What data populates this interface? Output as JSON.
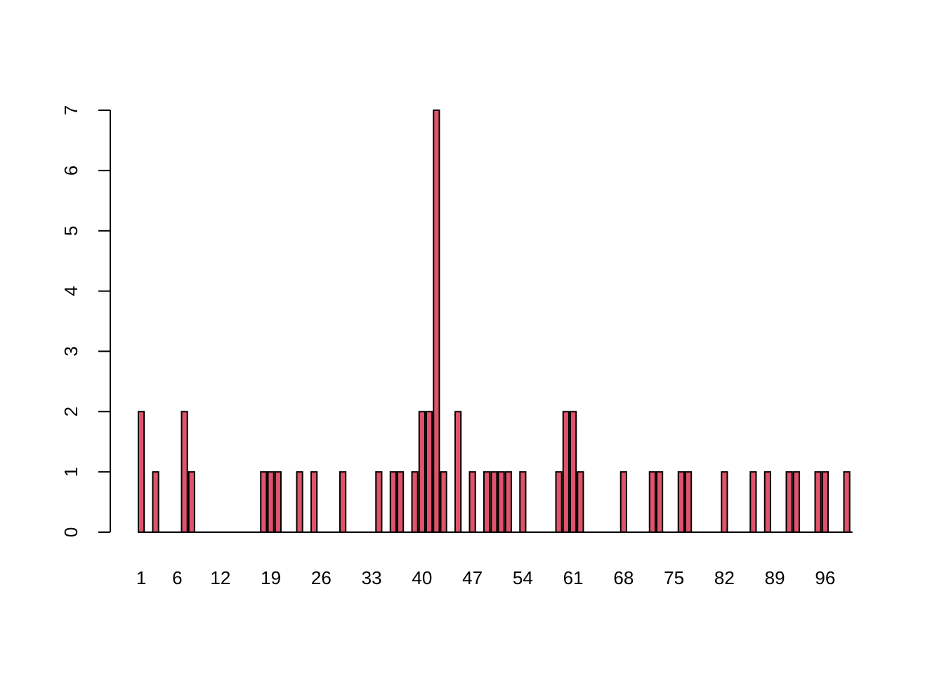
{
  "chart_data": {
    "type": "bar",
    "x": [
      1,
      3,
      7,
      8,
      18,
      19,
      20,
      23,
      25,
      29,
      34,
      36,
      37,
      39,
      40,
      41,
      42,
      43,
      45,
      47,
      49,
      50,
      51,
      52,
      54,
      59,
      60,
      61,
      62,
      68,
      72,
      73,
      76,
      77,
      82,
      86,
      88,
      91,
      92,
      95,
      96,
      99
    ],
    "values": [
      2,
      1,
      2,
      1,
      1,
      1,
      1,
      1,
      1,
      1,
      1,
      1,
      1,
      1,
      2,
      2,
      7,
      1,
      2,
      1,
      1,
      1,
      1,
      1,
      1,
      1,
      2,
      2,
      1,
      1,
      1,
      1,
      1,
      1,
      1,
      1,
      1,
      1,
      1,
      1,
      1,
      1
    ],
    "x_tick_labels": [
      "1",
      "6",
      "12",
      "19",
      "26",
      "33",
      "40",
      "47",
      "54",
      "61",
      "68",
      "75",
      "82",
      "89",
      "96"
    ],
    "y_ticks": [
      0,
      1,
      2,
      3,
      4,
      5,
      6,
      7
    ],
    "ylim": [
      0,
      7
    ],
    "title": "",
    "xlabel": "",
    "ylabel": "",
    "bar_color": "#DF536B",
    "grid": false,
    "legend": "none"
  }
}
